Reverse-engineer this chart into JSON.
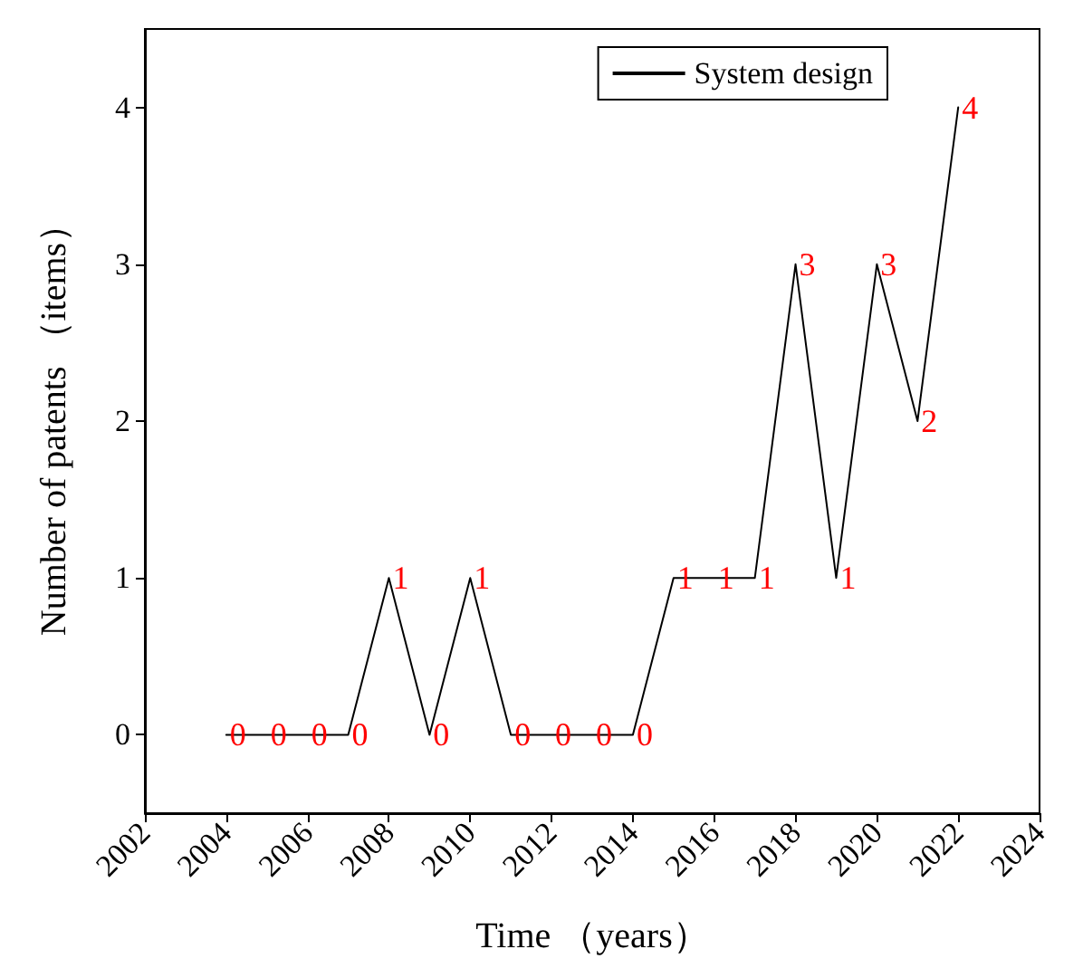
{
  "chart_data": {
    "type": "line",
    "xlabel": "Time （years）",
    "ylabel": "Number of patents （items）",
    "x": [
      2004,
      2005,
      2006,
      2007,
      2008,
      2009,
      2010,
      2011,
      2012,
      2013,
      2014,
      2015,
      2016,
      2017,
      2018,
      2019,
      2020,
      2021,
      2022
    ],
    "series": [
      {
        "name": "System design",
        "color": "#000000",
        "values": [
          0,
          0,
          0,
          0,
          1,
          0,
          1,
          0,
          0,
          0,
          0,
          1,
          1,
          1,
          3,
          1,
          3,
          2,
          4
        ]
      }
    ],
    "xlim": [
      2002,
      2024
    ],
    "xticks": [
      2002,
      2004,
      2006,
      2008,
      2010,
      2012,
      2014,
      2016,
      2018,
      2020,
      2022,
      2024
    ],
    "ylim": [
      -0.5,
      4.5
    ],
    "yticks": [
      0,
      1,
      2,
      3,
      4
    ],
    "data_labels": true,
    "grid": false,
    "legend": "top right",
    "marker": "none",
    "line_style": "solid"
  }
}
